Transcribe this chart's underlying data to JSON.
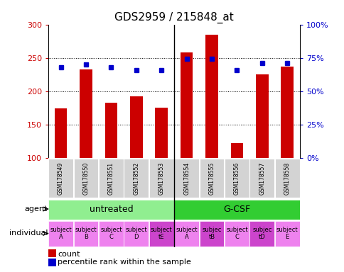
{
  "title": "GDS2959 / 215848_at",
  "samples": [
    "GSM178549",
    "GSM178550",
    "GSM178551",
    "GSM178552",
    "GSM178553",
    "GSM178554",
    "GSM178555",
    "GSM178556",
    "GSM178557",
    "GSM178558"
  ],
  "counts": [
    174,
    233,
    183,
    192,
    175,
    258,
    285,
    122,
    225,
    237
  ],
  "percentile_ranks": [
    68,
    70,
    68,
    66,
    66,
    74,
    74,
    66,
    71,
    71
  ],
  "ylim_left": [
    100,
    300
  ],
  "ylim_right": [
    0,
    100
  ],
  "yticks_left": [
    100,
    150,
    200,
    250,
    300
  ],
  "yticks_right": [
    0,
    25,
    50,
    75,
    100
  ],
  "ytick_labels_right": [
    "0%",
    "25%",
    "50%",
    "75%",
    "100%"
  ],
  "agent_groups": [
    {
      "label": "untreated",
      "start": 0,
      "end": 5,
      "color": "#90EE90"
    },
    {
      "label": "G-CSF",
      "start": 5,
      "end": 10,
      "color": "#32CD32"
    }
  ],
  "individuals": [
    {
      "label": "subject\nA",
      "idx": 0,
      "highlight": false
    },
    {
      "label": "subject\nB",
      "idx": 1,
      "highlight": false
    },
    {
      "label": "subject\nC",
      "idx": 2,
      "highlight": false
    },
    {
      "label": "subject\nD",
      "idx": 3,
      "highlight": false
    },
    {
      "label": "subject\ntE",
      "idx": 4,
      "highlight": true
    },
    {
      "label": "subject\nA",
      "idx": 5,
      "highlight": false
    },
    {
      "label": "subjec\ntB",
      "idx": 6,
      "highlight": true
    },
    {
      "label": "subject\nC",
      "idx": 7,
      "highlight": false
    },
    {
      "label": "subjec\ntD",
      "idx": 8,
      "highlight": true
    },
    {
      "label": "subject\nE",
      "idx": 9,
      "highlight": false
    }
  ],
  "bar_color": "#CC0000",
  "dot_color": "#0000CC",
  "bar_width": 0.5,
  "background_color": "#ffffff",
  "tick_label_area_bg": "#d3d3d3",
  "individual_bg_normal": "#EE82EE",
  "individual_bg_highlight": "#CC44CC",
  "agent_label_fontsize": 9,
  "individual_label_fontsize": 6,
  "legend_fontsize": 8,
  "title_fontsize": 11
}
